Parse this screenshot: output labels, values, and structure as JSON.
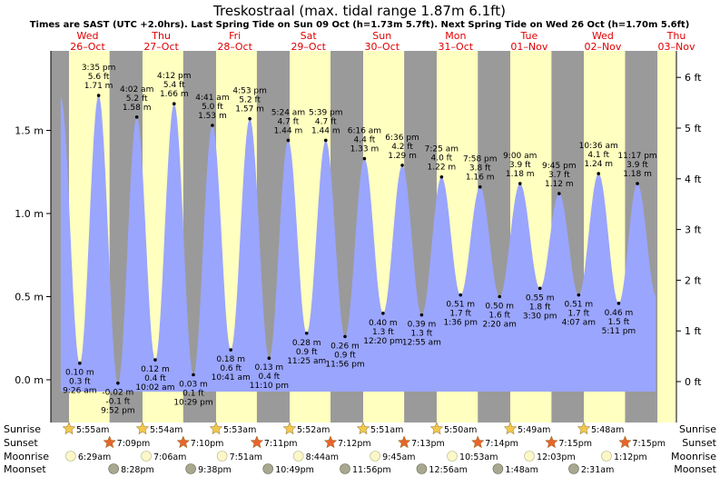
{
  "chart_data": {
    "type": "area",
    "title": "Treskostraal (max. tidal range 1.87m 6.1ft)",
    "subtitle": "Times are SAST (UTC +2.0hrs). Last Spring Tide on Sun 09 Oct (h=1.73m 5.7ft). Next Spring Tide on Wed 26 Oct (h=1.70m 5.6ft)",
    "xlabel": "",
    "ylabel_left": "m",
    "ylabel_right": "ft",
    "ylim_m": [
      -0.2,
      1.95
    ],
    "xlim_hours": [
      0,
      204
    ],
    "left_ticks": [
      "0.0 m",
      "0.5 m",
      "1.0 m",
      "1.5 m"
    ],
    "left_tick_values": [
      0,
      0.5,
      1.0,
      1.5
    ],
    "right_ticks": [
      "0 ft",
      "1 ft",
      "2 ft",
      "3 ft",
      "4 ft",
      "5 ft",
      "6 ft"
    ],
    "right_tick_values": [
      0,
      1,
      2,
      3,
      4,
      5,
      6
    ],
    "days": [
      {
        "name": "Wed",
        "date": "26–Oct"
      },
      {
        "name": "Thu",
        "date": "27–Oct"
      },
      {
        "name": "Fri",
        "date": "28–Oct"
      },
      {
        "name": "Sat",
        "date": "29–Oct"
      },
      {
        "name": "Sun",
        "date": "30–Oct"
      },
      {
        "name": "Mon",
        "date": "31–Oct"
      },
      {
        "name": "Tue",
        "date": "01–Nov"
      },
      {
        "name": "Wed",
        "date": "02–Nov"
      },
      {
        "name": "Thu",
        "date": "03–Nov"
      }
    ],
    "series": [
      {
        "name": "Tide height",
        "color": "#9aa5fd",
        "points": [
          {
            "t": "9:26 am",
            "hour": 9.43,
            "m": "0.10 m",
            "ft": "0.3 ft",
            "h": 0.1,
            "kind": "low"
          },
          {
            "t": "3:35 pm",
            "hour": 15.58,
            "m": "1.71 m",
            "ft": "5.6 ft",
            "h": 1.71,
            "kind": "high"
          },
          {
            "t": "9:52 pm",
            "hour": 21.87,
            "m": "-0.02 m",
            "ft": "-0.1 ft",
            "h": -0.02,
            "kind": "low"
          },
          {
            "t": "4:02 am",
            "hour": 28.03,
            "m": "1.58 m",
            "ft": "5.2 ft",
            "h": 1.58,
            "kind": "high"
          },
          {
            "t": "10:02 am",
            "hour": 34.03,
            "m": "0.12 m",
            "ft": "0.4 ft",
            "h": 0.12,
            "kind": "low"
          },
          {
            "t": "4:12 pm",
            "hour": 40.2,
            "m": "1.66 m",
            "ft": "5.4 ft",
            "h": 1.66,
            "kind": "high"
          },
          {
            "t": "10:29 pm",
            "hour": 46.48,
            "m": "0.03 m",
            "ft": "0.1 ft",
            "h": 0.03,
            "kind": "low"
          },
          {
            "t": "4:41 am",
            "hour": 52.68,
            "m": "1.53 m",
            "ft": "5.0 ft",
            "h": 1.53,
            "kind": "high"
          },
          {
            "t": "10:41 am",
            "hour": 58.68,
            "m": "0.18 m",
            "ft": "0.6 ft",
            "h": 0.18,
            "kind": "low"
          },
          {
            "t": "4:53 pm",
            "hour": 64.88,
            "m": "1.57 m",
            "ft": "5.2 ft",
            "h": 1.57,
            "kind": "high"
          },
          {
            "t": "11:10 pm",
            "hour": 71.17,
            "m": "0.13 m",
            "ft": "0.4 ft",
            "h": 0.13,
            "kind": "low"
          },
          {
            "t": "5:24 am",
            "hour": 77.4,
            "m": "1.44 m",
            "ft": "4.7 ft",
            "h": 1.44,
            "kind": "high"
          },
          {
            "t": "11:25 am",
            "hour": 83.42,
            "m": "0.28 m",
            "ft": "0.9 ft",
            "h": 0.28,
            "kind": "low"
          },
          {
            "t": "5:39 pm",
            "hour": 89.65,
            "m": "1.44 m",
            "ft": "4.7 ft",
            "h": 1.44,
            "kind": "high"
          },
          {
            "t": "11:56 pm",
            "hour": 95.93,
            "m": "0.26 m",
            "ft": "0.9 ft",
            "h": 0.26,
            "kind": "low"
          },
          {
            "t": "6:16 am",
            "hour": 102.27,
            "m": "1.33 m",
            "ft": "4.4 ft",
            "h": 1.33,
            "kind": "high"
          },
          {
            "t": "12:20 pm",
            "hour": 108.33,
            "m": "0.40 m",
            "ft": "1.3 ft",
            "h": 0.4,
            "kind": "low"
          },
          {
            "t": "6:36 pm",
            "hour": 114.6,
            "m": "1.29 m",
            "ft": "4.2 ft",
            "h": 1.29,
            "kind": "high"
          },
          {
            "t": "12:55 am",
            "hour": 120.92,
            "m": "0.39 m",
            "ft": "1.3 ft",
            "h": 0.39,
            "kind": "low"
          },
          {
            "t": "7:25 am",
            "hour": 127.42,
            "m": "1.22 m",
            "ft": "4.0 ft",
            "h": 1.22,
            "kind": "high"
          },
          {
            "t": "1:36 pm",
            "hour": 133.6,
            "m": "0.51 m",
            "ft": "1.7 ft",
            "h": 0.51,
            "kind": "low"
          },
          {
            "t": "7:58 pm",
            "hour": 139.97,
            "m": "1.16 m",
            "ft": "3.8 ft",
            "h": 1.16,
            "kind": "high"
          },
          {
            "t": "2:20 am",
            "hour": 146.33,
            "m": "0.50 m",
            "ft": "1.6 ft",
            "h": 0.5,
            "kind": "low"
          },
          {
            "t": "9:00 am",
            "hour": 153.0,
            "m": "1.18 m",
            "ft": "3.9 ft",
            "h": 1.18,
            "kind": "high"
          },
          {
            "t": "3:30 pm",
            "hour": 159.5,
            "m": "0.55 m",
            "ft": "1.8 ft",
            "h": 0.55,
            "kind": "low"
          },
          {
            "t": "9:45 pm",
            "hour": 165.75,
            "m": "1.12 m",
            "ft": "3.7 ft",
            "h": 1.12,
            "kind": "high"
          },
          {
            "t": "4:07 am",
            "hour": 172.12,
            "m": "0.51 m",
            "ft": "1.7 ft",
            "h": 0.51,
            "kind": "low"
          },
          {
            "t": "10:36 am",
            "hour": 178.6,
            "m": "1.24 m",
            "ft": "4.1 ft",
            "h": 1.24,
            "kind": "high"
          },
          {
            "t": "5:11 pm",
            "hour": 185.18,
            "m": "0.46 m",
            "ft": "1.5 ft",
            "h": 0.46,
            "kind": "low"
          },
          {
            "t": "11:17 pm",
            "hour": 191.28,
            "m": "1.18 m",
            "ft": "3.9 ft",
            "h": 1.18,
            "kind": "high"
          }
        ]
      }
    ],
    "grid": false,
    "legend": "none"
  },
  "sun_moon": {
    "labels": {
      "sunrise": "Sunrise",
      "sunset": "Sunset",
      "moonrise": "Moonrise",
      "moonset": "Moonset"
    },
    "sunrise": [
      {
        "time": "5:55am",
        "hour": 5.92
      },
      {
        "time": "5:54am",
        "hour": 29.9
      },
      {
        "time": "5:53am",
        "hour": 53.88
      },
      {
        "time": "5:52am",
        "hour": 77.87
      },
      {
        "time": "5:51am",
        "hour": 101.85
      },
      {
        "time": "5:50am",
        "hour": 125.83
      },
      {
        "time": "5:49am",
        "hour": 149.82
      },
      {
        "time": "5:48am",
        "hour": 173.8
      }
    ],
    "sunset": [
      {
        "time": "7:09pm",
        "hour": 19.15
      },
      {
        "time": "7:10pm",
        "hour": 43.17
      },
      {
        "time": "7:11pm",
        "hour": 67.18
      },
      {
        "time": "7:12pm",
        "hour": 91.2
      },
      {
        "time": "7:13pm",
        "hour": 115.22
      },
      {
        "time": "7:14pm",
        "hour": 139.23
      },
      {
        "time": "7:15pm",
        "hour": 163.25
      },
      {
        "time": "7:15pm",
        "hour": 187.25
      }
    ],
    "moonrise": [
      {
        "time": "6:29am",
        "hour": 6.48
      },
      {
        "time": "7:06am",
        "hour": 31.1
      },
      {
        "time": "7:51am",
        "hour": 55.85
      },
      {
        "time": "8:44am",
        "hour": 80.73
      },
      {
        "time": "9:45am",
        "hour": 105.75
      },
      {
        "time": "10:53am",
        "hour": 130.88
      },
      {
        "time": "12:03pm",
        "hour": 156.05
      },
      {
        "time": "1:12pm",
        "hour": 181.2
      }
    ],
    "moonset": [
      {
        "time": "8:28pm",
        "hour": 20.47
      },
      {
        "time": "9:38pm",
        "hour": 45.63
      },
      {
        "time": "10:49pm",
        "hour": 70.82
      },
      {
        "time": "11:56pm",
        "hour": 95.93
      },
      {
        "time": "12:56am",
        "hour": 120.93
      },
      {
        "time": "1:48am",
        "hour": 145.8
      },
      {
        "time": "2:31am",
        "hour": 170.52
      }
    ]
  },
  "colors": {
    "night": "#9a9a9a",
    "day": "#ffffc0",
    "tide_fill": "#9aa5fd",
    "day_label": "#e00000",
    "sunrise_star": "#f2c84b",
    "sunset_star": "#e8652c",
    "moonrise_disc": "#fbf7c8",
    "moonset_disc": "#a8a890"
  }
}
